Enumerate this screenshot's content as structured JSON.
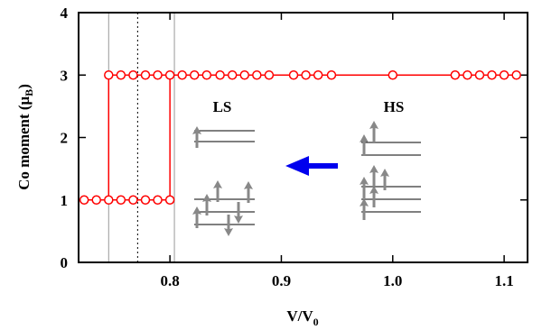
{
  "chart_data": {
    "type": "scatter",
    "xlabel": [
      "V/V",
      "0"
    ],
    "ylabel": [
      "Co moment (μ",
      "B",
      ")"
    ],
    "xlim": [
      0.718,
      1.121
    ],
    "ylim": [
      0,
      4
    ],
    "xticks": [
      0.8,
      0.9,
      {
        "value": 1,
        "label": "1.0"
      },
      1.1
    ],
    "yticks": [
      0,
      1,
      2,
      3,
      4
    ],
    "series": [
      {
        "color": "#ff0000",
        "x": [
          0.723,
          0.734,
          0.745,
          0.756,
          0.767,
          0.778,
          0.789,
          0.8
        ],
        "values": [
          1,
          1,
          1,
          1,
          1,
          1,
          1,
          1
        ]
      },
      {
        "color": "#ff0000",
        "x": [
          0.745,
          0.756,
          0.767,
          0.778,
          0.789,
          0.8,
          0.811,
          0.822,
          0.833,
          0.845,
          0.856,
          0.867,
          0.878,
          0.889,
          0.911,
          0.922,
          0.933,
          0.945,
          1.0,
          1.056,
          1.067,
          1.078,
          1.089,
          1.1,
          1.111
        ],
        "values": [
          3,
          3,
          3,
          3,
          3,
          3,
          3,
          3,
          3,
          3,
          3,
          3,
          3,
          3,
          3,
          3,
          3,
          3,
          3,
          3,
          3,
          3,
          3,
          3,
          3
        ]
      }
    ],
    "transitions": [
      0.745,
      0.8
    ],
    "vlines": [
      0.745,
      0.804
    ],
    "dotted_vlines": [
      0.771
    ],
    "annotations": [
      "LS",
      "HS"
    ]
  }
}
